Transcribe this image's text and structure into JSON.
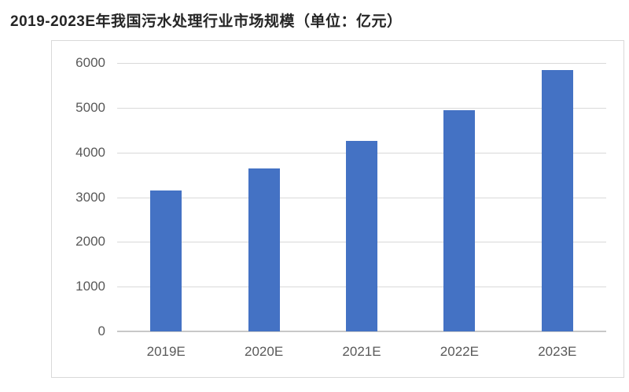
{
  "title": "2019-2023E年我国污水处理行业市场规模（单位：亿元）",
  "colors": {
    "bar": "#4472c4",
    "gridline": "#d9d9d9",
    "axis_line": "#c8c8c8",
    "tick_label": "#595959",
    "title": "#262626",
    "chart_border": "#d9d9d9",
    "background": "#ffffff"
  },
  "chart_data": {
    "type": "bar",
    "title": "2019-2023E年我国污水处理行业市场规模（单位：亿元）",
    "categories": [
      "2019E",
      "2020E",
      "2021E",
      "2022E",
      "2023E"
    ],
    "values": [
      3150,
      3650,
      4250,
      4950,
      5840
    ],
    "xlabel": "",
    "ylabel": "",
    "ylim": [
      0,
      6000
    ],
    "yticks": [
      0,
      1000,
      2000,
      3000,
      4000,
      5000,
      6000
    ],
    "grid": true,
    "legend": false,
    "bar_color": "#4472c4"
  }
}
